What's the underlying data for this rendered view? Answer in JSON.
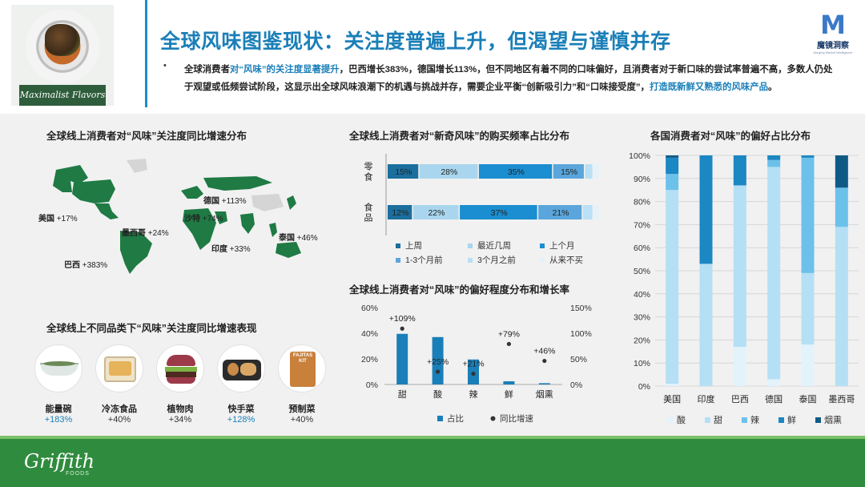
{
  "header": {
    "title": "全球风味图鉴现状：关注度普遍上升，但渴望与谨慎并存",
    "thumb_label": "Maximalist Flavors",
    "logo_letter": "M",
    "logo_cn": "魔镜洞察",
    "logo_en": "Moojing Market Intelligence",
    "bullet": "•",
    "para_1": "全球消费者",
    "para_hl1": "对“风味”的关注度显著提升",
    "para_2": "，巴西增长383%，德国增长113%，但不同地区有着不同的口味偏好，且消费者对于新口味的尝试率普遍不高，多数人仍处于观望或低频尝试阶段，这显示出全球风味浪潮下的机遇与挑战并存，需要企业平衡“创新吸引力”和“口味接受度”，",
    "para_hl2": "打造既新鲜又熟悉的风味产品",
    "para_3": "。"
  },
  "map_panel": {
    "title": "全球线上消费者对“风味”关注度同比增速分布",
    "labels": [
      {
        "name": "美国",
        "value": "+17%"
      },
      {
        "name": "墨西哥",
        "value": "+24%"
      },
      {
        "name": "巴西",
        "value": "+383%"
      },
      {
        "name": "德国",
        "value": "+113%"
      },
      {
        "name": "沙特",
        "value": "+74%"
      },
      {
        "name": "印度",
        "value": "+33%"
      },
      {
        "name": "泰国",
        "value": "+46%"
      }
    ]
  },
  "category_panel": {
    "title": "全球线上不同品类下“风味”关注度同比增速表现",
    "items": [
      {
        "name": "能量碗",
        "value": "+183%",
        "color": "#1a7fb8"
      },
      {
        "name": "冷冻食品",
        "value": "+40%",
        "color": "#333333"
      },
      {
        "name": "植物肉",
        "value": "+34%",
        "color": "#333333"
      },
      {
        "name": "快手菜",
        "value": "+128%",
        "color": "#1a7fb8"
      },
      {
        "name": "预制菜",
        "value": "+40%",
        "color": "#333333"
      }
    ],
    "jar_label_1": "FAJITAS",
    "jar_label_2": "KIT"
  },
  "chart_data": [
    {
      "type": "bar",
      "orientation": "horizontal-stacked",
      "title": "全球线上消费者对“新奇风味”的购买频率占比分布",
      "categories": [
        "零食",
        "食品"
      ],
      "series": [
        {
          "name": "上周",
          "values": [
            15,
            12
          ],
          "color": "#1a6f9e"
        },
        {
          "name": "最近几周",
          "values": [
            28,
            22
          ],
          "color": "#a9d6ee"
        },
        {
          "name": "上个月",
          "values": [
            35,
            37
          ],
          "color": "#1a8ed0"
        },
        {
          "name": "1-3个月前",
          "values": [
            15,
            21
          ],
          "color": "#5aa6dc"
        },
        {
          "name": "3个月之前",
          "values": [
            4,
            5
          ],
          "color": "#b9e0f4"
        },
        {
          "name": "从来不买",
          "values": [
            3,
            3
          ],
          "color": "#e5f2fa"
        }
      ],
      "data_labels": {
        "零食": [
          "15%",
          "28%",
          "35%",
          "15%"
        ],
        "食品": [
          "12%",
          "22%",
          "37%",
          "21%"
        ]
      },
      "legend_position": "bottom"
    },
    {
      "type": "bar",
      "title": "全球线上消费者对“风味”的偏好程度分布和增长率",
      "categories": [
        "甜",
        "酸",
        "辣",
        "鲜",
        "烟熏"
      ],
      "series": [
        {
          "name": "占比",
          "values": [
            39.5,
            37,
            19.5,
            2.5,
            1
          ],
          "color": "#1a7fb8",
          "axis": "left"
        },
        {
          "name": "同比增速",
          "values": [
            109,
            25,
            21,
            79,
            46
          ],
          "color": "#333333",
          "axis": "right",
          "marker": "dot"
        }
      ],
      "point_labels": [
        "+109%",
        "+25%",
        "+21%",
        "+79%",
        "+46%"
      ],
      "ylim_left": [
        0,
        60
      ],
      "yticks_left": [
        "0%",
        "20%",
        "40%",
        "60%"
      ],
      "ylim_right": [
        0,
        150
      ],
      "yticks_right": [
        "0%",
        "50%",
        "100%",
        "150%"
      ],
      "legend_position": "bottom"
    },
    {
      "type": "bar",
      "orientation": "vertical-stacked-100",
      "title": "各国消费者对“风味”的偏好占比分布",
      "categories": [
        "美国",
        "印度",
        "巴西",
        "德国",
        "泰国",
        "墨西哥"
      ],
      "series": [
        {
          "name": "酸",
          "values": [
            1,
            0,
            17,
            3,
            18,
            0
          ],
          "color": "#e3f3fb"
        },
        {
          "name": "甜",
          "values": [
            84,
            53,
            70,
            92,
            31,
            69
          ],
          "color": "#b5dff4"
        },
        {
          "name": "辣",
          "values": [
            7,
            0,
            0,
            3,
            50,
            17
          ],
          "color": "#6cc1ea"
        },
        {
          "name": "鲜",
          "values": [
            7,
            47,
            13,
            2,
            1,
            0
          ],
          "color": "#1b87c3"
        },
        {
          "name": "烟熏",
          "values": [
            1,
            0,
            0,
            0,
            0,
            14
          ],
          "color": "#0f5a85"
        }
      ],
      "ylim": [
        0,
        100
      ],
      "yticks": [
        "0%",
        "10%",
        "20%",
        "30%",
        "40%",
        "50%",
        "60%",
        "70%",
        "80%",
        "90%",
        "100%"
      ],
      "legend_position": "bottom"
    }
  ],
  "footer": {
    "brand": "Griffith",
    "sub": "FOODS"
  }
}
